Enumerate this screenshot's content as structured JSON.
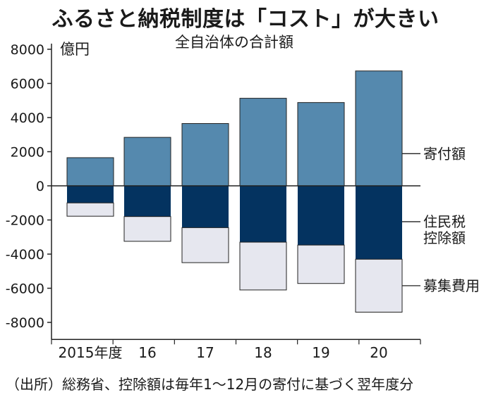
{
  "header": {
    "title": "ふるさと納税制度は「コスト」が大きい",
    "subtitle": "全自治体の合計額"
  },
  "footer": {
    "source": "（出所）総務省、控除額は毎年1～12月の寄付に基づく翌年度分"
  },
  "colors": {
    "donation": "#5589ae",
    "tax_deduction": "#043360",
    "costs": "#e6e7ef",
    "axis": "#222222"
  },
  "chart_data": {
    "type": "bar",
    "stacked": true,
    "title": "ふるさと納税制度は「コスト」が大きい",
    "subtitle": "全自治体の合計額",
    "unit_label": "億円",
    "categories": [
      "2015年度",
      "16",
      "17",
      "18",
      "19",
      "20"
    ],
    "series": [
      {
        "name": "寄付額",
        "values": [
          1650,
          2840,
          3650,
          5130,
          4880,
          6730
        ]
      },
      {
        "name": "住民税控除額",
        "values": [
          -1000,
          -1800,
          -2450,
          -3300,
          -3470,
          -4300
        ]
      },
      {
        "name": "募集費用",
        "values": [
          -780,
          -1450,
          -2050,
          -2800,
          -2250,
          -3100
        ]
      }
    ],
    "yticks": [
      8000,
      6000,
      4000,
      2000,
      0,
      -2000,
      -4000,
      -6000,
      -8000
    ],
    "ytick_labels": [
      "8000",
      "6000",
      "4000",
      "2000",
      "0",
      "-2000",
      "-4000",
      "-6000",
      "-8000"
    ],
    "ylim": [
      -9000,
      8000
    ],
    "legend": "right, inline labels",
    "source": "（出所）総務省、控除額は毎年1～12月の寄付に基づく翌年度分"
  }
}
